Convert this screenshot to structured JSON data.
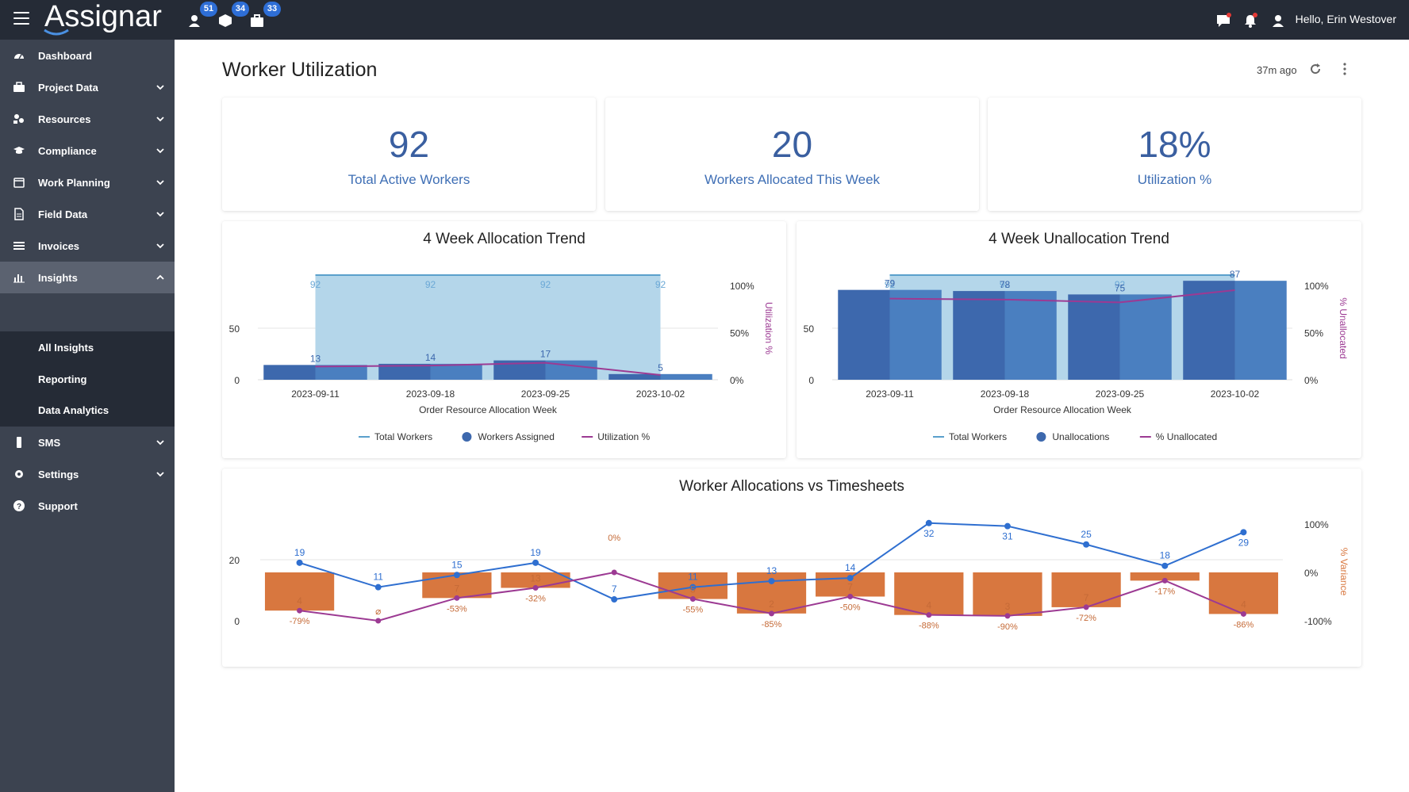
{
  "header": {
    "logo": "Assignar",
    "badges": {
      "people": "51",
      "equipment": "34",
      "jobs": "33"
    },
    "greeting": "Hello, Erin Westover"
  },
  "sidebar": {
    "items": [
      {
        "label": "Dashboard",
        "icon": "dashboard-icon"
      },
      {
        "label": "Project Data",
        "icon": "briefcase-icon"
      },
      {
        "label": "Resources",
        "icon": "resources-icon"
      },
      {
        "label": "Compliance",
        "icon": "graduation-cap-icon"
      },
      {
        "label": "Work Planning",
        "icon": "calendar-icon"
      },
      {
        "label": "Field Data",
        "icon": "document-icon"
      },
      {
        "label": "Invoices",
        "icon": "list-icon"
      },
      {
        "label": "Insights",
        "icon": "bar-chart-icon"
      },
      {
        "label": "SMS",
        "icon": "mobile-icon"
      },
      {
        "label": "Settings",
        "icon": "gear-icon"
      },
      {
        "label": "Support",
        "icon": "question-icon"
      }
    ],
    "insights_sub": [
      "All Insights",
      "Reporting",
      "Data Analytics"
    ]
  },
  "page": {
    "title": "Worker Utilization",
    "updated": "37m ago"
  },
  "kpis": [
    {
      "value": "92",
      "label": "Total Active Workers"
    },
    {
      "value": "20",
      "label": "Workers Allocated This Week"
    },
    {
      "value": "18%",
      "label": "Utilization %"
    }
  ],
  "colors": {
    "total_line": "#5aa0cc",
    "total_fill": "#b4d6ea",
    "assigned_bar": "#3d68ad",
    "assigned_bar_light": "#4a7fc0",
    "utilization": "#9c3a93",
    "variance_bar": "#d8773f",
    "allocations_line": "#2f6fd0"
  },
  "chart_data": [
    {
      "type": "bar",
      "title": "4 Week Allocation Trend",
      "xlabel": "Order Resource Allocation Week",
      "ylabel_right": "Utilization %",
      "categories": [
        "2023-09-11",
        "2023-09-18",
        "2023-09-25",
        "2023-10-02"
      ],
      "y_ticks": [
        "0",
        "50"
      ],
      "y2_ticks": [
        "0%",
        "50%",
        "100%"
      ],
      "series": [
        {
          "name": "Total Workers",
          "kind": "area",
          "values": [
            92,
            92,
            92,
            92
          ]
        },
        {
          "name": "Workers Assigned",
          "kind": "bar",
          "values": [
            13,
            14,
            17,
            5
          ]
        },
        {
          "name": "Utilization %",
          "kind": "line",
          "values": [
            14,
            15,
            18,
            5
          ]
        }
      ],
      "legend": "bottom"
    },
    {
      "type": "bar",
      "title": "4 Week Unallocation Trend",
      "xlabel": "Order Resource Allocation Week",
      "ylabel_right": "% Unallocated",
      "categories": [
        "2023-09-11",
        "2023-09-18",
        "2023-09-25",
        "2023-10-02"
      ],
      "y_ticks": [
        "0",
        "50"
      ],
      "y2_ticks": [
        "0%",
        "50%",
        "100%"
      ],
      "series": [
        {
          "name": "Total Workers",
          "kind": "area",
          "values": [
            92,
            92,
            92,
            92
          ]
        },
        {
          "name": "Unallocations",
          "kind": "bar",
          "values": [
            79,
            78,
            75,
            87
          ]
        },
        {
          "name": "% Unallocated",
          "kind": "line",
          "values": [
            86,
            85,
            82,
            95
          ]
        }
      ],
      "legend": "bottom"
    },
    {
      "type": "bar",
      "title": "Worker Allocations vs Timesheets",
      "ylabel_right": "% Variance",
      "y_ticks": [
        "0",
        "20"
      ],
      "y2_ticks": [
        "-100%",
        "0%",
        "100%"
      ],
      "allocations": [
        19,
        11,
        15,
        19,
        7,
        11,
        13,
        14,
        32,
        31,
        25,
        18,
        29
      ],
      "timesheets": [
        "4",
        "⌀",
        "7",
        "13",
        "",
        "5",
        "2",
        "7",
        "4",
        "3",
        "7",
        "",
        "4"
      ],
      "variance_labels": [
        "-79%",
        "",
        "-53%",
        "-32%",
        "0%",
        "-55%",
        "-85%",
        "-50%",
        "-88%",
        "-90%",
        "-72%",
        "-17%",
        "-86%"
      ],
      "variance_values": [
        -79,
        -100,
        -53,
        -32,
        0,
        -55,
        -85,
        -50,
        -88,
        -90,
        -72,
        -17,
        -86
      ]
    }
  ]
}
